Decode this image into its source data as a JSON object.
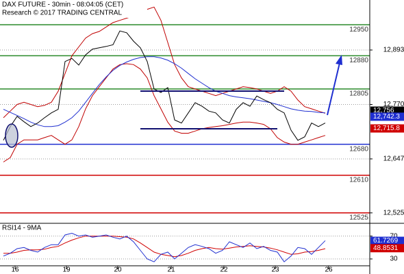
{
  "chart_data": [
    {
      "type": "line",
      "title": "DAX FUTURE - 30min - 08:04:05 (CET)",
      "subtitle": "Research © 2017 TRADING CENTRAL",
      "x": [
        0,
        1,
        2,
        3,
        4,
        5,
        6,
        7,
        8,
        9,
        10,
        11,
        12,
        13,
        14,
        15,
        16,
        17,
        18,
        19,
        20,
        21,
        22,
        23,
        24,
        25,
        26,
        27,
        28,
        29,
        30,
        31,
        32,
        33,
        34,
        35,
        36,
        37,
        38,
        39,
        40,
        41,
        42,
        43,
        44,
        45,
        46,
        47
      ],
      "xlim": [
        -0.5,
        53.5
      ],
      "ylim": [
        12503,
        13006
      ],
      "yticks": [
        {
          "value": 12893,
          "label": "12,893"
        },
        {
          "value": 12770,
          "label": "12,770"
        },
        {
          "value": 12647,
          "label": "12,647"
        },
        {
          "value": 12525,
          "label": "12,525"
        }
      ],
      "series": [
        {
          "color": "#c00000",
          "values": [
            12740,
            12755,
            12770,
            12775,
            12770,
            12765,
            12768,
            12775,
            12800,
            12840,
            12880,
            12900,
            12920,
            12930,
            12935,
            12945,
            12955,
            12960,
            12965,
            12970,
            12975,
            12985,
            12990,
            12960,
            12910,
            12860,
            12830,
            12810,
            12805,
            12800,
            12795,
            12790,
            12795,
            12800,
            12805,
            12810,
            12808,
            12805,
            12800,
            12795,
            12800,
            12810,
            12800,
            12780,
            12765,
            12760,
            12755,
            12750
          ]
        },
        {
          "color": "#c00000",
          "values": [
            12640,
            12650,
            12680,
            12690,
            12690,
            12690,
            12695,
            12700,
            12690,
            12680,
            12690,
            12720,
            12760,
            12790,
            12810,
            12830,
            12850,
            12860,
            12862,
            12860,
            12850,
            12830,
            12790,
            12760,
            12730,
            12710,
            12705,
            12705,
            12710,
            12715,
            12718,
            12720,
            12722,
            12725,
            12728,
            12730,
            12730,
            12728,
            12725,
            12715,
            12695,
            12685,
            12680,
            12680,
            12685,
            12690,
            12695,
            12700
          ]
        },
        {
          "color": "#1f2fd0",
          "values": [
            12759,
            12752,
            12745,
            12738,
            12730,
            12724,
            12720,
            12720,
            12722,
            12730,
            12740,
            12755,
            12775,
            12795,
            12815,
            12832,
            12847,
            12858,
            12866,
            12872,
            12876,
            12878,
            12878,
            12875,
            12870,
            12862,
            12852,
            12840,
            12828,
            12818,
            12808,
            12800,
            12795,
            12790,
            12787,
            12785,
            12783,
            12780,
            12777,
            12774,
            12770,
            12765,
            12760,
            12757,
            12755,
            12754,
            12752,
            12751
          ]
        },
        {
          "color": "#000000",
          "values": [
            12689,
            12720,
            12743,
            12731,
            12720,
            12728,
            12740,
            12751,
            12759,
            12867,
            12874,
            12859,
            12882,
            12895,
            12898,
            12901,
            12905,
            12936,
            12932,
            12913,
            12898,
            12867,
            12805,
            12797,
            12808,
            12735,
            12728,
            12751,
            12774,
            12766,
            12755,
            12751,
            12735,
            12728,
            12759,
            12774,
            12766,
            12789,
            12781,
            12774,
            12759,
            12751,
            12712,
            12689,
            12697,
            12728,
            12720,
            12728
          ]
        }
      ],
      "levels": [
        {
          "value": 12950,
          "color": "#2a8a2a"
        },
        {
          "value": 12880,
          "color": "#2a8a2a"
        },
        {
          "value": 12805,
          "color": "#2a8a2a"
        },
        {
          "value": 12680,
          "color": "#1f2fd0"
        },
        {
          "value": 12610,
          "color": "#d00000"
        },
        {
          "value": 12525,
          "color": "#d00000"
        }
      ],
      "price_tags": [
        {
          "value": 12756,
          "label": "12,756",
          "color": "#000000"
        },
        {
          "value": 12742.3,
          "label": "12,742.3",
          "color": "#1f2fd0"
        },
        {
          "value": 12715.8,
          "label": "12,715.8",
          "color": "#d00000"
        }
      ]
    },
    {
      "type": "line",
      "title": "RSI14 - 9MA",
      "x": [
        0,
        1,
        2,
        3,
        4,
        5,
        6,
        7,
        8,
        9,
        10,
        11,
        12,
        13,
        14,
        15,
        16,
        17,
        18,
        19,
        20,
        21,
        22,
        23,
        24,
        25,
        26,
        27,
        28,
        29,
        30,
        31,
        32,
        33,
        34,
        35,
        36,
        37,
        38,
        39,
        40,
        41,
        42,
        43,
        44,
        45,
        46,
        47
      ],
      "xlim": [
        -0.5,
        53.5
      ],
      "xticks": [
        {
          "value": 1.7,
          "label": "16"
        },
        {
          "value": 9.2,
          "label": "19"
        },
        {
          "value": 16.7,
          "label": "20"
        },
        {
          "value": 24.5,
          "label": "21"
        },
        {
          "value": 32.2,
          "label": "22"
        },
        {
          "value": 39.7,
          "label": "23"
        },
        {
          "value": 47.5,
          "label": "26"
        }
      ],
      "ylim": [
        18,
        90
      ],
      "yticks": [
        70,
        30
      ],
      "series": [
        {
          "color": "#d00000",
          "values": [
            40,
            40,
            42,
            45,
            46,
            46,
            47,
            50,
            52,
            58,
            63,
            67,
            70,
            70,
            70,
            70,
            70,
            69,
            68,
            65,
            58,
            50,
            42,
            38,
            36,
            34,
            36,
            40,
            45,
            48,
            50,
            48,
            47,
            49,
            51,
            52,
            53,
            52,
            51,
            49,
            46,
            42,
            38,
            39,
            42,
            43,
            45,
            48
          ]
        },
        {
          "color": "#1f2fd0",
          "values": [
            35,
            40,
            48,
            50,
            45,
            42,
            50,
            55,
            55,
            72,
            75,
            70,
            72,
            68,
            70,
            72,
            68,
            65,
            70,
            60,
            45,
            30,
            25,
            38,
            42,
            30,
            40,
            50,
            55,
            52,
            48,
            40,
            45,
            60,
            55,
            50,
            58,
            48,
            52,
            45,
            42,
            25,
            35,
            50,
            48,
            38,
            50,
            62
          ]
        }
      ],
      "price_tags": [
        {
          "value": 61.7269,
          "color": "#1f2fd0"
        },
        {
          "value": 48.8531,
          "color": "#d00000"
        }
      ]
    }
  ]
}
